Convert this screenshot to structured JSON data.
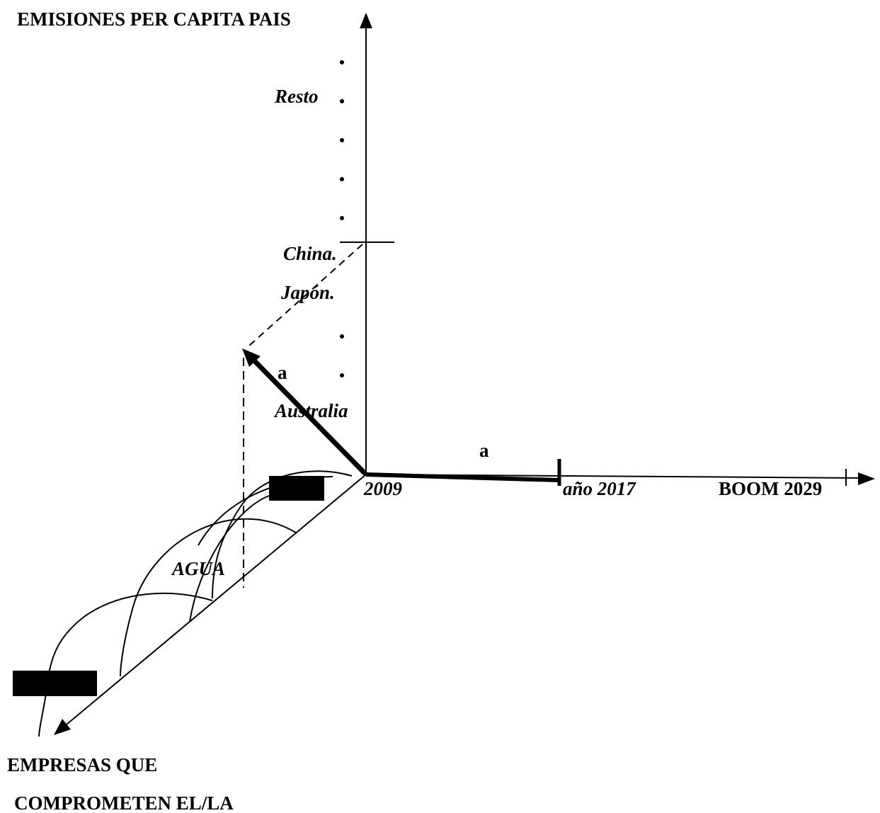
{
  "axes": {
    "y_label": "EMISIONES PER CAPITA PAIS",
    "x_labels": [
      "2009",
      "año 2017",
      "BOOM 2029"
    ],
    "z_label_lines": [
      "EMPRESAS QUE",
      "COMPROMETEN EL/LA"
    ]
  },
  "countries": [
    "Resto",
    "China.",
    "Japón.",
    "Australia"
  ],
  "vector_labels": [
    "a",
    "a"
  ],
  "region_label": "AGUA"
}
